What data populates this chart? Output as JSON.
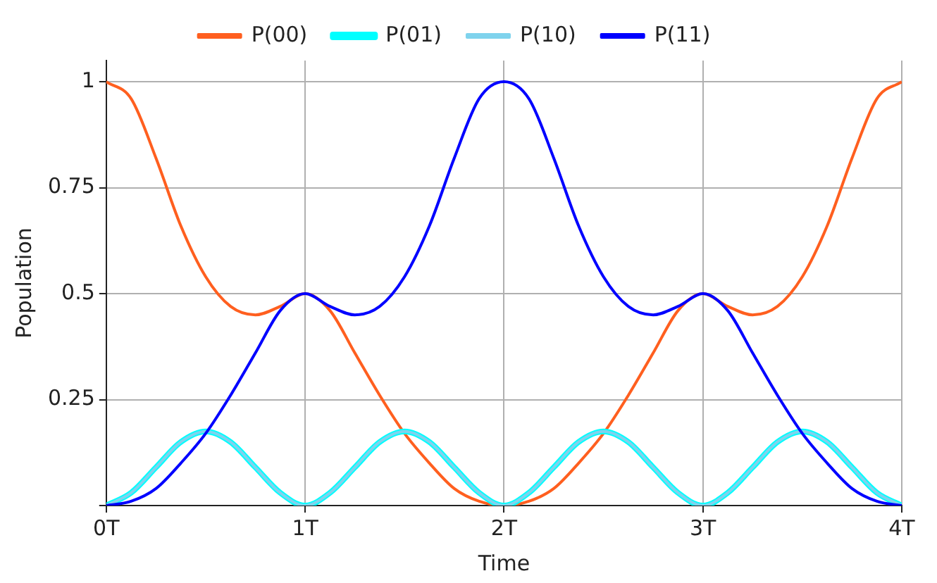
{
  "chart_data": {
    "type": "line",
    "xlabel": "Time",
    "ylabel": "Population",
    "x": [
      0,
      0.125,
      0.25,
      0.375,
      0.5,
      0.625,
      0.75,
      0.875,
      1,
      1.125,
      1.25,
      1.375,
      1.5,
      1.625,
      1.75,
      1.875,
      2,
      2.125,
      2.25,
      2.375,
      2.5,
      2.625,
      2.75,
      2.875,
      3,
      3.125,
      3.25,
      3.375,
      3.5,
      3.625,
      3.75,
      3.875,
      4
    ],
    "series": [
      {
        "name": "P(00)",
        "color": "#ff5f1f",
        "values": [
          1,
          0.96,
          0.82,
          0.66,
          0.54,
          0.47,
          0.45,
          0.47,
          0.5,
          0.46,
          0.36,
          0.26,
          0.17,
          0.1,
          0.04,
          0.01,
          0,
          0.01,
          0.04,
          0.1,
          0.17,
          0.26,
          0.36,
          0.46,
          0.5,
          0.47,
          0.45,
          0.47,
          0.54,
          0.66,
          0.82,
          0.96,
          1
        ]
      },
      {
        "name": "P(01)",
        "color": "#00ffff",
        "values": [
          0,
          0.03,
          0.09,
          0.15,
          0.175,
          0.15,
          0.09,
          0.03,
          0,
          0.03,
          0.09,
          0.15,
          0.175,
          0.15,
          0.09,
          0.03,
          0,
          0.03,
          0.09,
          0.15,
          0.175,
          0.15,
          0.09,
          0.03,
          0,
          0.03,
          0.09,
          0.15,
          0.175,
          0.15,
          0.09,
          0.03,
          0
        ]
      },
      {
        "name": "P(10)",
        "color": "#7fd3ed",
        "values": [
          0,
          0.03,
          0.09,
          0.15,
          0.175,
          0.15,
          0.09,
          0.03,
          0,
          0.03,
          0.09,
          0.15,
          0.175,
          0.15,
          0.09,
          0.03,
          0,
          0.03,
          0.09,
          0.15,
          0.175,
          0.15,
          0.09,
          0.03,
          0,
          0.03,
          0.09,
          0.15,
          0.175,
          0.15,
          0.09,
          0.03,
          0
        ]
      },
      {
        "name": "P(11)",
        "color": "#0000ff",
        "values": [
          0,
          0.01,
          0.04,
          0.1,
          0.17,
          0.26,
          0.36,
          0.46,
          0.5,
          0.47,
          0.45,
          0.47,
          0.54,
          0.66,
          0.82,
          0.96,
          1,
          0.96,
          0.82,
          0.66,
          0.54,
          0.47,
          0.45,
          0.47,
          0.5,
          0.46,
          0.36,
          0.26,
          0.17,
          0.1,
          0.04,
          0.01,
          0
        ]
      }
    ],
    "xlim": [
      0,
      4
    ],
    "xticks": [
      {
        "value": 0,
        "label": "0T"
      },
      {
        "value": 1,
        "label": "1T"
      },
      {
        "value": 2,
        "label": "2T"
      },
      {
        "value": 3,
        "label": "3T"
      },
      {
        "value": 4,
        "label": "4T"
      }
    ],
    "ylim": [
      0,
      1.05
    ],
    "yticks": [
      {
        "value": 0,
        "label": null
      },
      0.25,
      0.5,
      0.75,
      1
    ],
    "grid": true,
    "legend": "top",
    "marker": "none",
    "line_style": "solid"
  }
}
